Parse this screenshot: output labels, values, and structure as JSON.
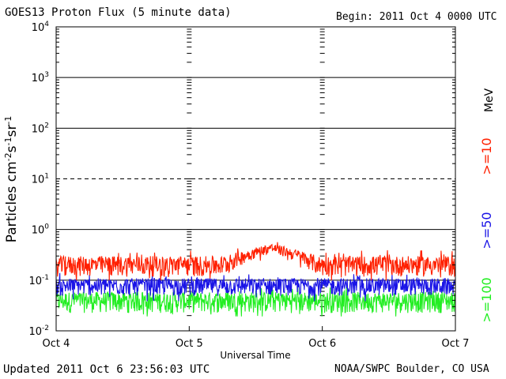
{
  "header": {
    "title": "GOES13 Proton Flux (5 minute data)",
    "begin": "Begin: 2011 Oct 4 0000 UTC"
  },
  "footer": {
    "updated": "Updated 2011 Oct  6 23:56:03 UTC",
    "credit": "NOAA/SWPC Boulder, CO USA"
  },
  "right_axis": {
    "unit": "MeV"
  },
  "chart_data": {
    "type": "line",
    "ylabel": "Particles cm-2s-1sr-1",
    "xlabel": "Universal Time",
    "yscale": "log",
    "ylim": [
      0.01,
      10000
    ],
    "y_ticks": [
      "10-2",
      "10-1",
      "100",
      "101",
      "102",
      "103",
      "104"
    ],
    "xlim": [
      0,
      3
    ],
    "x_ticks": [
      "Oct 4",
      "Oct 5",
      "Oct 6",
      "Oct 7"
    ],
    "reference_lines": [
      {
        "y": 10,
        "style": "dashed"
      },
      {
        "y": 0.1,
        "style": "solid"
      }
    ],
    "series": [
      {
        "name": ">=10",
        "color": "#ff2000",
        "baseline": 0.18,
        "noise": 0.09,
        "events": [
          {
            "day": 1.62,
            "peak": 0.6
          }
        ]
      },
      {
        "name": ">=50",
        "color": "#1a14e6",
        "baseline": 0.07,
        "noise": 0.03
      },
      {
        "name": ">=100",
        "color": "#22ee22",
        "baseline": 0.035,
        "noise": 0.018
      }
    ]
  }
}
